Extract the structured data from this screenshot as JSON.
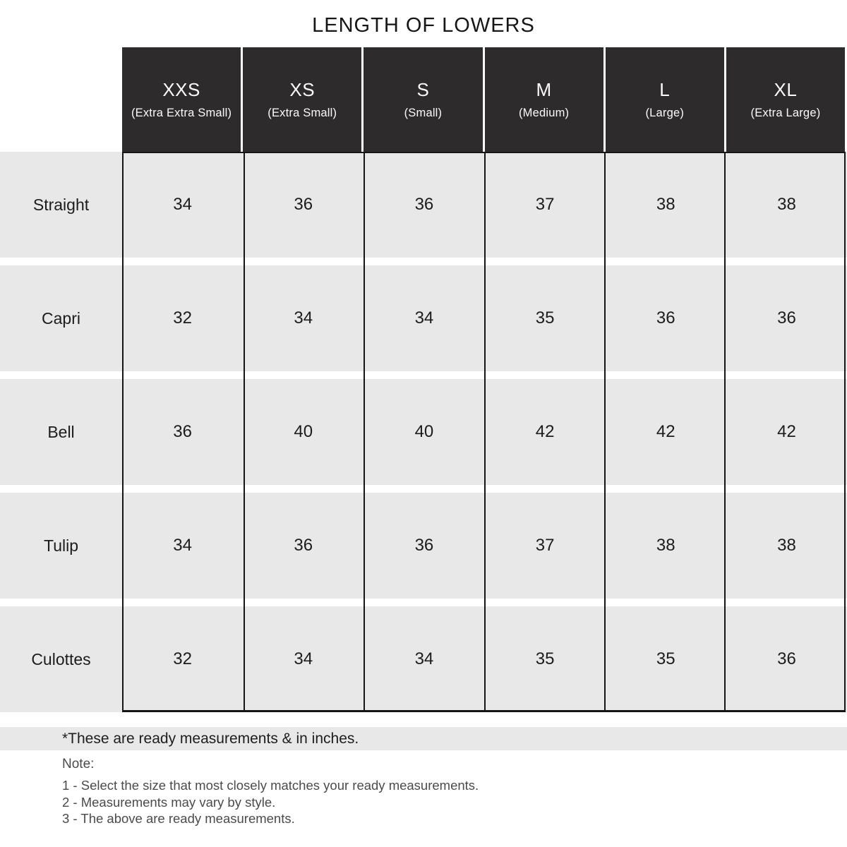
{
  "title": "LENGTH OF LOWERS",
  "table": {
    "columns": [
      {
        "size": "XXS",
        "full": "(Extra Extra Small)"
      },
      {
        "size": "XS",
        "full": "(Extra Small)"
      },
      {
        "size": "S",
        "full": "(Small)"
      },
      {
        "size": "M",
        "full": "(Medium)"
      },
      {
        "size": "L",
        "full": "(Large)"
      },
      {
        "size": "XL",
        "full": "(Extra Large)"
      }
    ],
    "rows": [
      {
        "label": "Straight",
        "values": [
          "34",
          "36",
          "36",
          "37",
          "38",
          "38"
        ]
      },
      {
        "label": "Capri",
        "values": [
          "32",
          "34",
          "34",
          "35",
          "36",
          "36"
        ]
      },
      {
        "label": "Bell",
        "values": [
          "36",
          "40",
          "40",
          "42",
          "42",
          "42"
        ]
      },
      {
        "label": "Tulip",
        "values": [
          "34",
          "36",
          "36",
          "37",
          "38",
          "38"
        ]
      },
      {
        "label": "Culottes",
        "values": [
          "32",
          "34",
          "34",
          "35",
          "35",
          "36"
        ]
      }
    ]
  },
  "footnote": "*These are ready measurements & in inches.",
  "note": {
    "heading": "Note:",
    "items": [
      "1 - Select the size that most closely matches your ready measurements.",
      "2 - Measurements may vary by style.",
      "3 - The above are ready measurements."
    ]
  },
  "colors": {
    "header_bg": "#2e2b2c",
    "row_bg": "#e9e8e8",
    "border": "#161414",
    "text": "#1d1c1c"
  },
  "units": "inches"
}
